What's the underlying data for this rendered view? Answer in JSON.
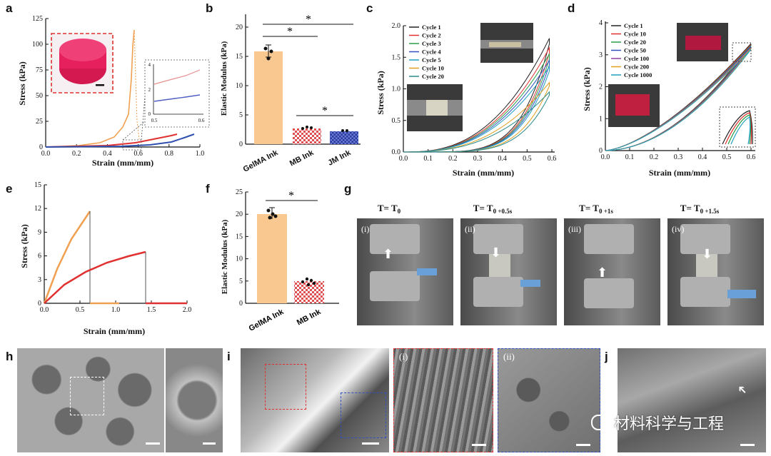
{
  "panel_labels": {
    "a": "a",
    "b": "b",
    "c": "c",
    "d": "d",
    "e": "e",
    "f": "f",
    "g": "g",
    "h": "h",
    "i": "i",
    "j": "j"
  },
  "panel_a": {
    "ylabel": "Stress (kPa)",
    "xlabel": "Strain (mm/mm)",
    "yticks": [
      "0",
      "25",
      "50",
      "75",
      "100",
      "125"
    ],
    "xticks": [
      "0.0",
      "0.2",
      "0.4",
      "0.6",
      "0.8",
      "1.0"
    ],
    "inset": {
      "yticks": [
        "0",
        "2",
        "4"
      ],
      "xticks": [
        "0.5",
        "0.6"
      ]
    },
    "colors": {
      "orange": "#f0a050",
      "red": "#e03030",
      "blue": "#3050b0"
    }
  },
  "panel_b": {
    "ylabel": "Elastic Modulus (kPa)",
    "yticks": [
      "0",
      "5",
      "10",
      "15",
      "20"
    ],
    "categories": [
      "GelMA Ink",
      "MB Ink",
      "JM Ink"
    ],
    "sig": [
      "*",
      "*",
      "*"
    ]
  },
  "panel_c": {
    "ylabel": "Stress (kPa)",
    "xlabel": "Strain (mm/mm)",
    "yticks": [
      "0.0",
      "0.5",
      "1.0",
      "1.5",
      "2.0"
    ],
    "xticks": [
      "0.0",
      "0.1",
      "0.2",
      "0.3",
      "0.4",
      "0.5",
      "0.6"
    ],
    "legend": [
      "Cycle 1",
      "Cycle 2",
      "Cycle 3",
      "Cycle 4",
      "Cycle 5",
      "Cycle 10",
      "Cycle 20"
    ],
    "legend_colors": [
      "#222222",
      "#e03030",
      "#2a9d4a",
      "#3050c0",
      "#20a0c0",
      "#e0a020",
      "#2a8a8a"
    ]
  },
  "panel_d": {
    "ylabel": "Stress (kPa)",
    "xlabel": "Strain (mm/mm)",
    "yticks": [
      "0",
      "1",
      "2",
      "3",
      "4"
    ],
    "xticks": [
      "0.0",
      "0.1",
      "0.2",
      "0.3",
      "0.4",
      "0.5",
      "0.6"
    ],
    "legend": [
      "Cycle 1",
      "Cycle 10",
      "Cycle 20",
      "Cycle 50",
      "Cycle 100",
      "Cycle 200",
      "Cycle 1000"
    ],
    "legend_colors": [
      "#222222",
      "#e03030",
      "#2a9d4a",
      "#3050c0",
      "#9040a0",
      "#e0a020",
      "#20a0c0"
    ]
  },
  "panel_e": {
    "ylabel": "Stress (kPa)",
    "xlabel": "Strain (mm/mm)",
    "yticks": [
      "0",
      "3",
      "6",
      "9",
      "12",
      "15"
    ],
    "xticks": [
      "0.0",
      "0.5",
      "1.0",
      "1.5",
      "2.0"
    ]
  },
  "panel_f": {
    "ylabel": "Elastic Modulus (kPa)",
    "yticks": [
      "0",
      "5",
      "10",
      "15",
      "20",
      "25"
    ],
    "categories": [
      "GelMA Ink",
      "MB Ink"
    ],
    "sig": "*"
  },
  "panel_g": {
    "times": [
      "T= T",
      "T= T",
      "T= T",
      "T= T"
    ],
    "time_subs": [
      "0",
      "0 +0.5s",
      "0 +1s",
      "0 +1.5s"
    ],
    "frames": [
      "(i)",
      "(ii)",
      "(iii)",
      "(iv)"
    ]
  },
  "panel_i": {
    "insets": [
      "(i)",
      "(ii)"
    ]
  },
  "chart_data": [
    {
      "type": "line",
      "id": "a",
      "xlabel": "Strain (mm/mm)",
      "ylabel": "Stress (kPa)",
      "xlim": [
        0,
        1.0
      ],
      "ylim": [
        0,
        125
      ],
      "series": [
        {
          "values": [
            [
              0,
              0
            ],
            [
              0.2,
              2
            ],
            [
              0.35,
              8
            ],
            [
              0.45,
              25
            ],
            [
              0.52,
              55
            ],
            [
              0.57,
              95
            ],
            [
              0.6,
              115
            ]
          ]
        },
        {
          "values": [
            [
              0,
              0
            ],
            [
              0.4,
              2
            ],
            [
              0.6,
              5
            ],
            [
              0.75,
              9
            ],
            [
              0.85,
              12
            ]
          ]
        },
        {
          "values": [
            [
              0,
              0
            ],
            [
              0.5,
              1
            ],
            [
              0.7,
              3
            ],
            [
              0.85,
              6
            ],
            [
              0.97,
              11
            ]
          ]
        }
      ]
    },
    {
      "type": "bar",
      "id": "b",
      "categories": [
        "GelMA Ink",
        "MB Ink",
        "JM Ink"
      ],
      "values": [
        15.3,
        2.5,
        2.2
      ],
      "ylabel": "Elastic Modulus (kPa)",
      "ylim": [
        0,
        20
      ]
    },
    {
      "type": "line",
      "id": "c",
      "xlabel": "Strain (mm/mm)",
      "ylabel": "Stress (kPa)",
      "xlim": [
        0,
        0.6
      ],
      "ylim": [
        0,
        2.0
      ]
    },
    {
      "type": "line",
      "id": "d",
      "xlabel": "Strain (mm/mm)",
      "ylabel": "Stress (kPa)",
      "xlim": [
        0,
        0.6
      ],
      "ylim": [
        0,
        4
      ]
    },
    {
      "type": "line",
      "id": "e",
      "xlabel": "Strain (mm/mm)",
      "ylabel": "Stress (kPa)",
      "xlim": [
        0,
        2.0
      ],
      "ylim": [
        0,
        15
      ],
      "series": [
        {
          "values": [
            [
              0,
              0
            ],
            [
              0.2,
              5
            ],
            [
              0.4,
              9
            ],
            [
              0.63,
              12.3
            ],
            [
              0.63,
              0
            ],
            [
              1.05,
              0
            ]
          ]
        },
        {
          "values": [
            [
              0,
              0
            ],
            [
              0.5,
              3.2
            ],
            [
              1.0,
              5.3
            ],
            [
              1.42,
              6.7
            ],
            [
              1.42,
              0
            ],
            [
              2.0,
              0
            ]
          ]
        }
      ]
    },
    {
      "type": "bar",
      "id": "f",
      "categories": [
        "GelMA Ink",
        "MB Ink"
      ],
      "values": [
        20.7,
        4.1
      ],
      "ylabel": "Elastic Modulus (kPa)",
      "ylim": [
        0,
        25
      ]
    }
  ],
  "watermark": "材料科学与工程"
}
